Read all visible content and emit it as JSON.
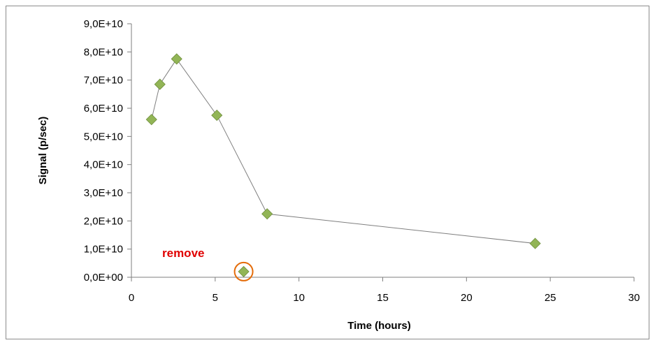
{
  "chart_data": {
    "type": "scatter",
    "title": "",
    "xlabel": "Time (hours)",
    "ylabel": "Signal (p/sec)",
    "xlim": [
      0,
      30
    ],
    "ylim": [
      0,
      90000000000
    ],
    "x_ticks": [
      0,
      5,
      10,
      15,
      20,
      25,
      30
    ],
    "x_tick_labels": [
      "0",
      "5",
      "10",
      "15",
      "20",
      "25",
      "30"
    ],
    "y_ticks": [
      0,
      10000000000,
      20000000000,
      30000000000,
      40000000000,
      50000000000,
      60000000000,
      70000000000,
      80000000000,
      90000000000
    ],
    "y_tick_labels": [
      "0,0E+00",
      "1,0E+10",
      "2,0E+10",
      "3,0E+10",
      "4,0E+10",
      "5,0E+10",
      "6,0E+10",
      "7,0E+10",
      "8,0E+10",
      "9,0E+10"
    ],
    "grid": false,
    "legend": "none",
    "connected_points": [
      {
        "x": 1.2,
        "y": 56000000000
      },
      {
        "x": 1.7,
        "y": 68500000000
      },
      {
        "x": 2.7,
        "y": 77500000000
      },
      {
        "x": 5.1,
        "y": 57500000000
      },
      {
        "x": 8.1,
        "y": 22500000000
      },
      {
        "x": 24.1,
        "y": 12000000000
      }
    ],
    "outlier_point": {
      "x": 6.7,
      "y": 2000000000
    },
    "annotation": {
      "text": "remove",
      "color": "#e00000",
      "circle_color": "#e46c0a"
    },
    "colors": {
      "marker": "#92b556",
      "marker_edge": "#6f8f3c",
      "line": "#7f7f7f",
      "axis": "#7f7f7f"
    }
  }
}
